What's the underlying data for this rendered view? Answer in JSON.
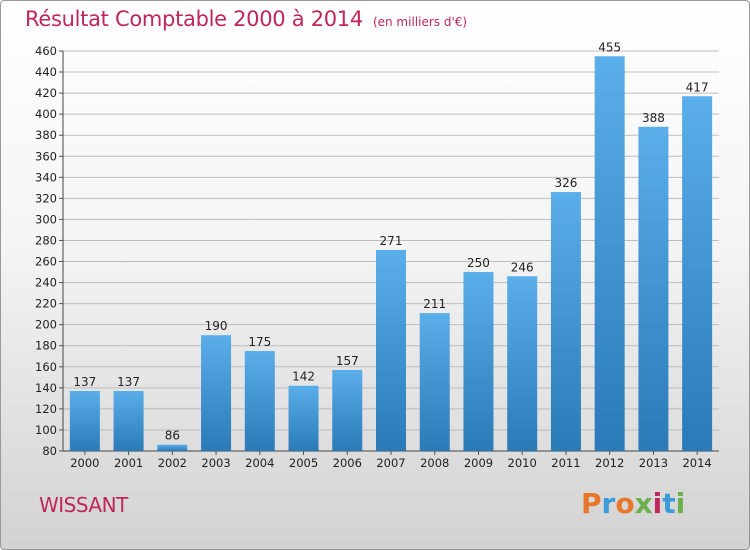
{
  "header": {
    "title": "Résultat Comptable 2000 à 2014",
    "subtitle": "(en milliers d'€)"
  },
  "footer": {
    "commune": "WISSANT",
    "brand": "Proxiti",
    "brand_colors": [
      "#e8762b",
      "#3a9bd8",
      "#e8762b",
      "#6ab04c",
      "#c0265a",
      "#3a9bd8",
      "#6ab04c"
    ]
  },
  "colors": {
    "accent": "#c0265a",
    "bar_top": "#5aaeea",
    "bar_bottom": "#2a7ab8"
  },
  "chart_data": {
    "type": "bar",
    "categories": [
      "2000",
      "2001",
      "2002",
      "2003",
      "2004",
      "2005",
      "2006",
      "2007",
      "2008",
      "2009",
      "2010",
      "2011",
      "2012",
      "2013",
      "2014"
    ],
    "values": [
      137,
      137,
      86,
      190,
      175,
      142,
      157,
      271,
      211,
      250,
      246,
      326,
      455,
      388,
      417
    ],
    "ylim": [
      80,
      460
    ],
    "yticks": [
      80,
      100,
      120,
      140,
      160,
      180,
      200,
      220,
      240,
      260,
      280,
      300,
      320,
      340,
      360,
      380,
      400,
      420,
      440,
      460
    ],
    "grid": true
  }
}
